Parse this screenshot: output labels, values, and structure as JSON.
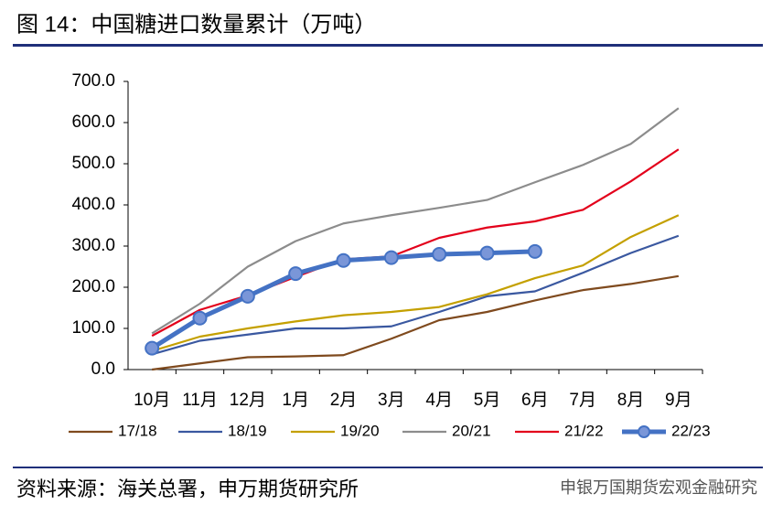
{
  "chart_data": {
    "type": "line",
    "title": "图 14：中国糖进口数量累计（万吨）",
    "source": "资料来源：海关总署，申万期货研究所",
    "watermark": "申银万国期货宏观金融研究",
    "categories": [
      "10月",
      "11月",
      "12月",
      "1月",
      "2月",
      "3月",
      "4月",
      "5月",
      "6月",
      "7月",
      "8月",
      "9月"
    ],
    "ylim": [
      0,
      700
    ],
    "yticks": [
      {
        "value": 0,
        "label": "0.0"
      },
      {
        "value": 100,
        "label": "100.0"
      },
      {
        "value": 200,
        "label": "200.0"
      },
      {
        "value": 300,
        "label": "300.0"
      },
      {
        "value": 400,
        "label": "400.0"
      },
      {
        "value": 500,
        "label": "500.0"
      },
      {
        "value": 600,
        "label": "600.0"
      },
      {
        "value": 700,
        "label": "700.0"
      }
    ],
    "legend": "bottom",
    "series": [
      {
        "name": "17/18",
        "color": "#7f4a1e",
        "values": [
          0,
          15,
          30,
          32,
          35,
          75,
          120,
          140,
          168,
          193,
          208,
          227
        ]
      },
      {
        "name": "18/19",
        "color": "#3a58a0",
        "values": [
          37,
          70,
          85,
          100,
          100,
          105,
          140,
          178,
          190,
          235,
          283,
          325
        ]
      },
      {
        "name": "19/20",
        "color": "#c4a000",
        "values": [
          45,
          80,
          100,
          117,
          132,
          140,
          152,
          183,
          222,
          253,
          322,
          375
        ]
      },
      {
        "name": "20/21",
        "color": "#8c8c8c",
        "values": [
          88,
          160,
          250,
          312,
          355,
          375,
          393,
          412,
          455,
          497,
          548,
          635
        ]
      },
      {
        "name": "21/22",
        "color": "#e3001b",
        "values": [
          82,
          145,
          180,
          225,
          268,
          275,
          320,
          345,
          360,
          388,
          457,
          535
        ]
      },
      {
        "name": "22/23",
        "color": "#4472c4",
        "values": [
          52,
          125,
          178,
          233,
          265,
          272,
          280,
          283,
          287,
          null,
          null,
          null
        ],
        "markers": true
      }
    ]
  }
}
